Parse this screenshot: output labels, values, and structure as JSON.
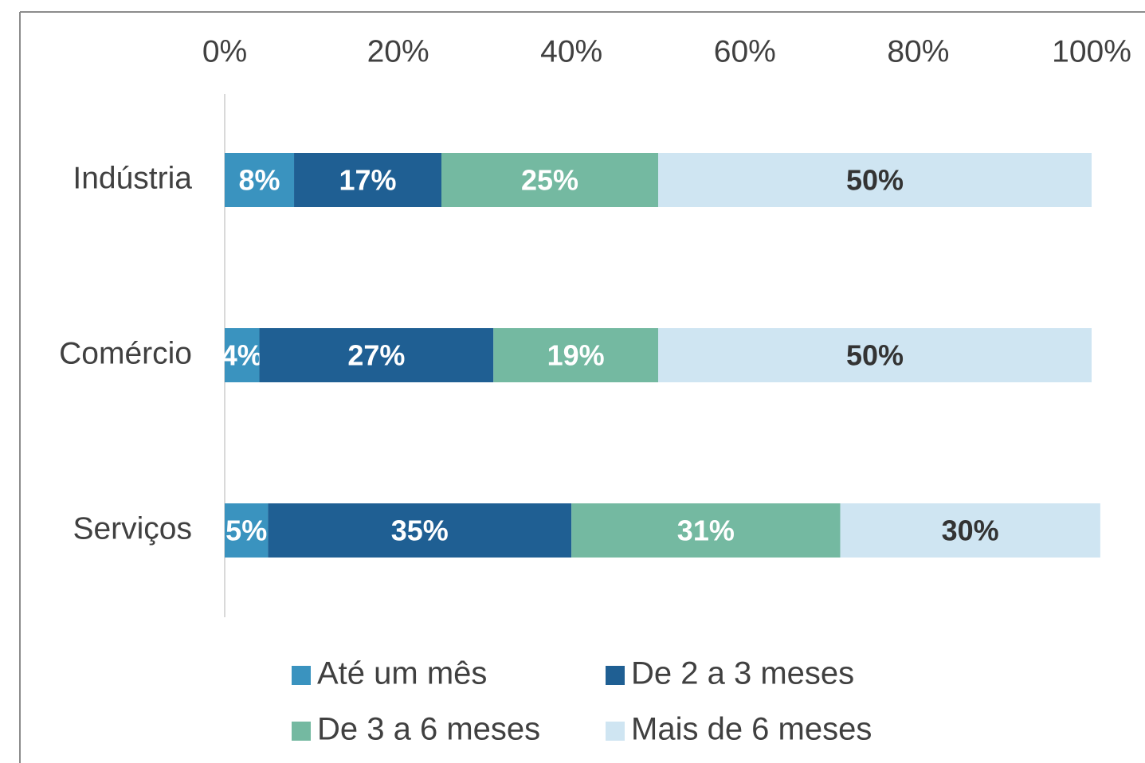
{
  "chart_data": {
    "type": "stacked_barh",
    "categories": [
      "Indústria",
      "Comércio",
      "Serviços"
    ],
    "series": [
      {
        "name": "Até um mês",
        "color": "#3a93bf",
        "values": [
          8,
          4,
          5
        ],
        "value_labels": [
          "8%",
          "4%",
          "5%"
        ]
      },
      {
        "name": "De 2 a 3 meses",
        "color": "#1f5f93",
        "values": [
          17,
          27,
          35
        ],
        "value_labels": [
          "17%",
          "27%",
          "35%"
        ]
      },
      {
        "name": "De 3 a 6 meses",
        "color": "#74b9a1",
        "values": [
          25,
          19,
          31
        ],
        "value_labels": [
          "25%",
          "19%",
          "31%"
        ]
      },
      {
        "name": "Mais de 6 meses",
        "color": "#cfe5f2",
        "values": [
          50,
          50,
          30
        ],
        "value_labels": [
          "50%",
          "50%",
          "30%"
        ]
      }
    ],
    "xlim": [
      0,
      100
    ],
    "xticks": [
      {
        "value": 0,
        "label": "0%"
      },
      {
        "value": 20,
        "label": "20%"
      },
      {
        "value": 40,
        "label": "40%"
      },
      {
        "value": 60,
        "label": "60%"
      },
      {
        "value": 80,
        "label": "80%"
      },
      {
        "value": 100,
        "label": "100%"
      }
    ],
    "legend": "bottom"
  }
}
